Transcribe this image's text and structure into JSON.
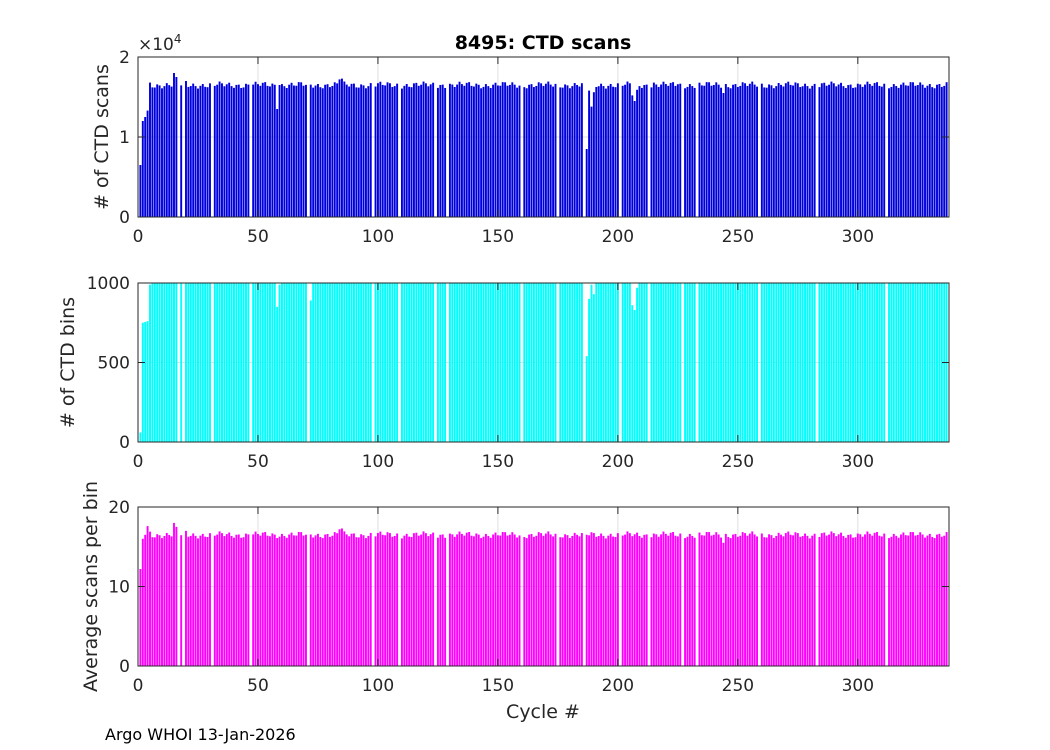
{
  "title": "8495: CTD scans",
  "footer": "Argo WHOI 13-Jan-2026",
  "xlabel": "Cycle #",
  "chart_data": [
    {
      "type": "bar",
      "name": "ctd-scans",
      "ylabel": "# of CTD scans",
      "color": "#0000dd",
      "xlim": [
        0,
        338
      ],
      "ylim": [
        0,
        20000
      ],
      "xticks": [
        0,
        50,
        100,
        150,
        200,
        250,
        300
      ],
      "yticks": [
        0,
        10000,
        20000
      ],
      "ytick_labels": [
        "0",
        "1",
        "2"
      ],
      "exponent_label": "×10",
      "exponent_sup": "4",
      "base": 16500,
      "variation": 280,
      "overrides": {
        "1": 6500,
        "2": 12000,
        "3": 12500,
        "4": 13300,
        "5": 16800,
        "15": 18000,
        "16": 17500,
        "20": 17000,
        "58": 13500,
        "59": 16500,
        "84": 17200,
        "85": 17300,
        "187": 8500,
        "188": 15800,
        "189": 13800,
        "190": 15600,
        "206": 15200,
        "207": 14500,
        "208": 15900,
        "215": 16800,
        "225": 16600,
        "244": 15500
      },
      "gaps": [
        0,
        17,
        19,
        31,
        47,
        71,
        98,
        109,
        124,
        129,
        160,
        175,
        186,
        201,
        213,
        227,
        233,
        259,
        283,
        312
      ]
    },
    {
      "type": "bar",
      "name": "ctd-bins",
      "ylabel": "# of CTD bins",
      "color": "#00ffff",
      "xlim": [
        0,
        338
      ],
      "ylim": [
        0,
        1000
      ],
      "xticks": [
        0,
        50,
        100,
        150,
        200,
        250,
        300
      ],
      "yticks": [
        0,
        500,
        1000
      ],
      "ytick_labels": [
        "0",
        "500",
        "1000"
      ],
      "base": 1000,
      "variation": 0,
      "overrides": {
        "1": 60,
        "2": 750,
        "3": 755,
        "4": 760,
        "5": 990,
        "58": 850,
        "59": 990,
        "72": 890,
        "187": 540,
        "188": 900,
        "189": 990,
        "190": 930,
        "206": 860,
        "207": 830,
        "208": 970
      },
      "gaps": [
        0,
        17,
        19,
        31,
        47,
        71,
        98,
        109,
        124,
        129,
        160,
        175,
        186,
        201,
        213,
        227,
        233,
        259,
        283,
        312
      ]
    },
    {
      "type": "bar",
      "name": "avg-scans-per-bin",
      "ylabel": "Average scans per bin",
      "color": "#ff00ff",
      "xlim": [
        0,
        338
      ],
      "ylim": [
        0,
        20
      ],
      "xticks": [
        0,
        50,
        100,
        150,
        200,
        250,
        300
      ],
      "yticks": [
        0,
        10,
        20
      ],
      "ytick_labels": [
        "0",
        "10",
        "20"
      ],
      "base": 16.5,
      "variation": 0.28,
      "overrides": {
        "1": 12.2,
        "2": 16.0,
        "3": 16.5,
        "4": 17.6,
        "5": 16.9,
        "15": 18.0,
        "16": 17.5,
        "20": 17.0,
        "84": 17.2,
        "85": 17.3,
        "244": 15.5
      },
      "gaps": [
        0,
        17,
        19,
        31,
        47,
        71,
        98,
        109,
        124,
        129,
        160,
        175,
        186,
        201,
        213,
        227,
        233,
        259,
        283,
        312
      ]
    }
  ]
}
